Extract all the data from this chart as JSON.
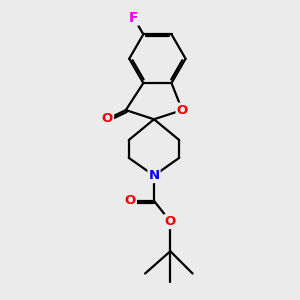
{
  "background_color": "#ebebeb",
  "bond_color": "#000000",
  "atom_colors": {
    "F": "#ee00ee",
    "O": "#ee0000",
    "N": "#0000ee",
    "C": "#000000"
  },
  "figsize": [
    3.0,
    3.0
  ],
  "dpi": 100
}
